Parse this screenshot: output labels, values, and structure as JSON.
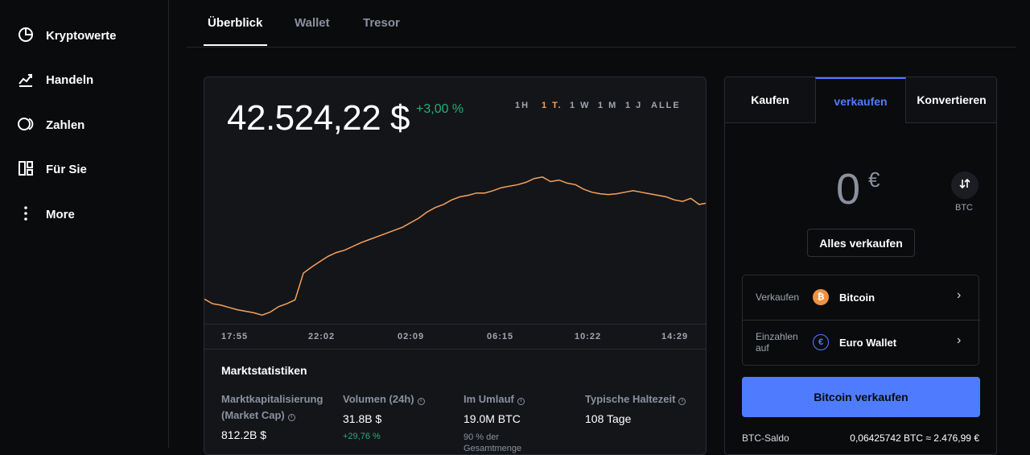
{
  "sidebar": {
    "items": [
      {
        "label": "Kryptowerte",
        "icon": "pie-chart-icon"
      },
      {
        "label": "Handeln",
        "icon": "trend-chart-icon"
      },
      {
        "label": "Zahlen",
        "icon": "pay-circle-icon"
      },
      {
        "label": "Für Sie",
        "icon": "layout-grid-icon"
      },
      {
        "label": "More",
        "icon": "more-vertical-icon"
      }
    ]
  },
  "tabs": [
    {
      "label": "Überblick",
      "active": true
    },
    {
      "label": "Wallet",
      "active": false
    },
    {
      "label": "Tresor",
      "active": false
    }
  ],
  "price": {
    "value": "42.524,22 $",
    "change": "+3,00 %",
    "change_color": "#27ad75"
  },
  "ranges": [
    {
      "label": "1H",
      "active": false
    },
    {
      "label": "1 T.",
      "active": true
    },
    {
      "label": "1 W",
      "active": false
    },
    {
      "label": "1 M",
      "active": false
    },
    {
      "label": "1 J",
      "active": false
    },
    {
      "label": "ALLE",
      "active": false
    }
  ],
  "chart_data": {
    "type": "line",
    "series": [
      {
        "color": "#f5a25d",
        "values": [
          41260,
          41200,
          41180,
          41150,
          41120,
          41100,
          41080,
          41050,
          41090,
          41160,
          41200,
          41250,
          41600,
          41680,
          41750,
          41820,
          41870,
          41900,
          41950,
          42000,
          42040,
          42080,
          42120,
          42160,
          42200,
          42260,
          42320,
          42400,
          42460,
          42500,
          42560,
          42600,
          42620,
          42650,
          42650,
          42680,
          42720,
          42740,
          42760,
          42790,
          42840,
          42860,
          42800,
          42820,
          42780,
          42760,
          42700,
          42660,
          42640,
          42630,
          42640,
          42660,
          42680,
          42660,
          42640,
          42620,
          42600,
          42560,
          42540,
          42580,
          42500,
          42520
        ]
      }
    ],
    "x_tick_labels": [
      "17:55",
      "22:02",
      "02:09",
      "06:15",
      "10:22",
      "14:29"
    ],
    "grid": false,
    "legend": "none"
  },
  "stats": {
    "title": "Marktstatistiken",
    "columns": [
      {
        "label": "Marktkapitalisierung (Market Cap)",
        "value": "812.2B $",
        "sub": ""
      },
      {
        "label": "Volumen (24h)",
        "value": "31.8B $",
        "sub": "+29,76 %"
      },
      {
        "label": "Im Umlauf",
        "value": "19.0M BTC",
        "sub": "90 % der Gesamtmenge"
      },
      {
        "label": "Typische Haltezeit",
        "value": "108 Tage",
        "sub": ""
      }
    ]
  },
  "trade": {
    "tabs": [
      {
        "label": "Kaufen",
        "active": false
      },
      {
        "label": "verkaufen",
        "active": true
      },
      {
        "label": "Konvertieren",
        "active": false
      }
    ],
    "amount": "0",
    "amount_currency": "€",
    "swap_label": "BTC",
    "sell_all_label": "Alles verkaufen",
    "rows": [
      {
        "label": "Verkaufen",
        "value": "Bitcoin",
        "icon": "bitcoin-icon",
        "icon_text": "₿",
        "icon_color": "#f09242"
      },
      {
        "label": "Einzahlen auf",
        "value": "Euro Wallet",
        "icon": "euro-icon",
        "icon_text": "€",
        "icon_color": "#4f7cff"
      }
    ],
    "primary_label": "Bitcoin verkaufen",
    "saldo_label": "BTC-Saldo",
    "saldo_value": "0,06425742 BTC ≈ 2.476,99 €"
  }
}
